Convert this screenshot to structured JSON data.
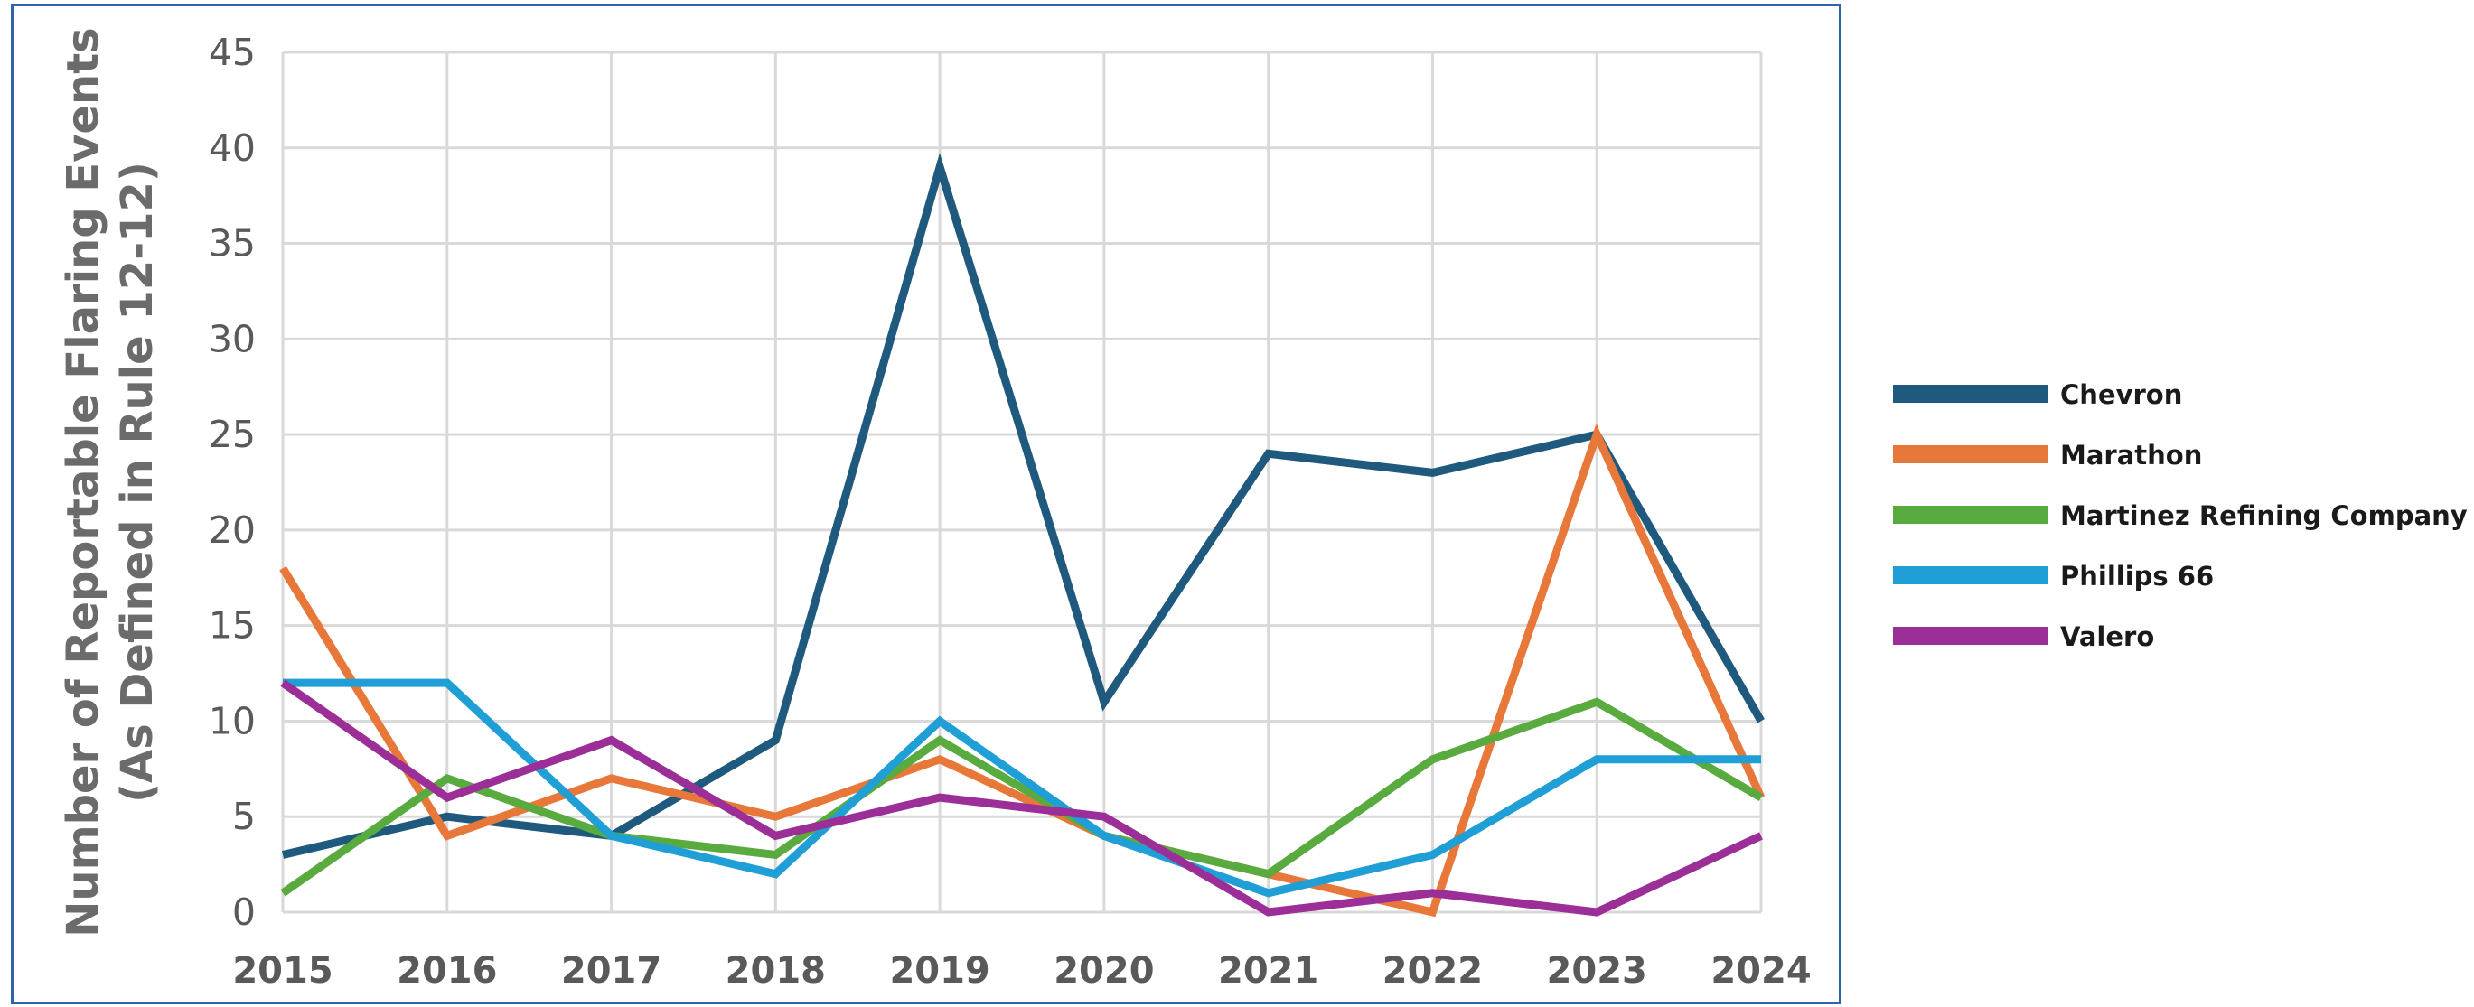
{
  "chart_data": {
    "type": "line",
    "title": "",
    "xlabel": "",
    "ylabel_lines": [
      "Number of Reportable Flaring Events",
      "(As Defined in Rule 12-12)"
    ],
    "categories": [
      "2015",
      "2016",
      "2017",
      "2018",
      "2019",
      "2020",
      "2021",
      "2022",
      "2023",
      "2024"
    ],
    "y_ticks": [
      "0",
      "5",
      "10",
      "15",
      "20",
      "25",
      "30",
      "35",
      "40",
      "45"
    ],
    "ylim": [
      0,
      45
    ],
    "grid": true,
    "legend_position": "right",
    "series": [
      {
        "name": "Chevron",
        "color": "#1f5a7e",
        "values": [
          3,
          5,
          4,
          9,
          39,
          11,
          24,
          23,
          25,
          10
        ]
      },
      {
        "name": "Marathon",
        "color": "#e8773a",
        "values": [
          18,
          4,
          7,
          5,
          8,
          4,
          2,
          0,
          25,
          6
        ]
      },
      {
        "name": "Martinez Refining Company",
        "color": "#5aab3f",
        "values": [
          1,
          7,
          4,
          3,
          9,
          4,
          2,
          8,
          11,
          6
        ]
      },
      {
        "name": "Phillips 66",
        "color": "#1f9fd6",
        "values": [
          12,
          12,
          4,
          2,
          10,
          4,
          1,
          3,
          8,
          8
        ]
      },
      {
        "name": "Valero",
        "color": "#9b2f97",
        "values": [
          12,
          6,
          9,
          4,
          6,
          5,
          0,
          1,
          0,
          4
        ]
      }
    ]
  }
}
